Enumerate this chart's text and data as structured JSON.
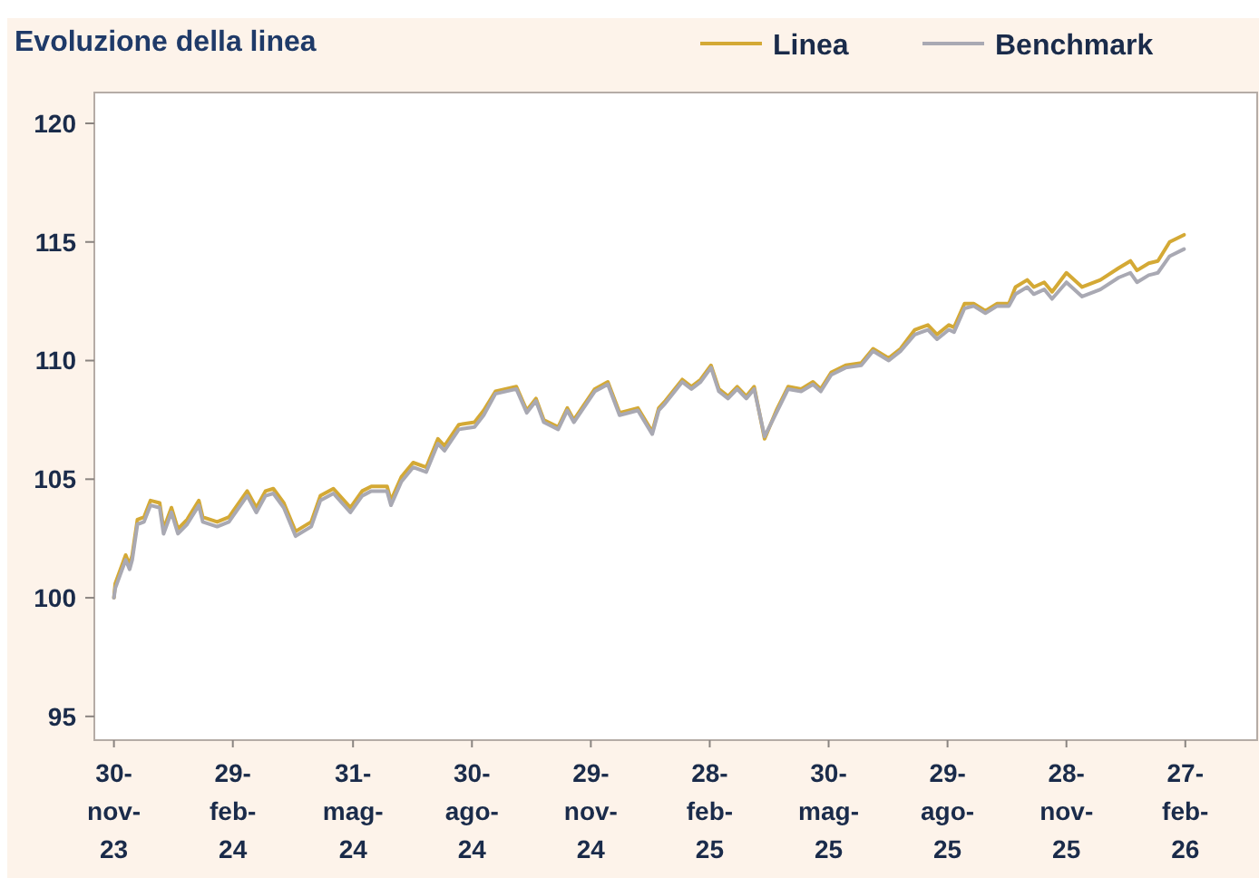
{
  "chart_data": {
    "type": "line",
    "title": "Evoluzione della linea",
    "x": [
      "2023-11-30",
      "2023-12-01",
      "2023-12-05",
      "2023-12-09",
      "2023-12-12",
      "2023-12-14",
      "2023-12-18",
      "2023-12-23",
      "2023-12-28",
      "2024-01-04",
      "2024-01-07",
      "2024-01-13",
      "2024-01-18",
      "2024-01-25",
      "2024-02-03",
      "2024-02-06",
      "2024-02-17",
      "2024-02-26",
      "2024-03-11",
      "2024-03-18",
      "2024-03-25",
      "2024-03-31",
      "2024-04-08",
      "2024-04-17",
      "2024-04-29",
      "2024-05-06",
      "2024-05-16",
      "2024-05-29",
      "2024-06-07",
      "2024-06-14",
      "2024-06-26",
      "2024-06-29",
      "2024-07-07",
      "2024-07-16",
      "2024-07-26",
      "2024-08-04",
      "2024-08-09",
      "2024-08-20",
      "2024-09-01",
      "2024-09-08",
      "2024-09-17",
      "2024-10-03",
      "2024-10-11",
      "2024-10-18",
      "2024-10-24",
      "2024-11-04",
      "2024-11-11",
      "2024-11-16",
      "2024-12-02",
      "2024-12-12",
      "2024-12-21",
      "2025-01-04",
      "2025-01-15",
      "2025-01-20",
      "2025-01-25",
      "2025-02-07",
      "2025-02-14",
      "2025-02-21",
      "2025-03-01",
      "2025-03-07",
      "2025-03-14",
      "2025-03-21",
      "2025-03-28",
      "2025-04-03",
      "2025-04-11",
      "2025-04-20",
      "2025-04-29",
      "2025-05-09",
      "2025-05-18",
      "2025-05-24",
      "2025-06-01",
      "2025-06-12",
      "2025-06-24",
      "2025-07-03",
      "2025-07-15",
      "2025-07-24",
      "2025-08-04",
      "2025-08-14",
      "2025-08-21",
      "2025-08-30",
      "2025-09-03",
      "2025-09-11",
      "2025-09-18",
      "2025-09-27",
      "2025-10-06",
      "2025-10-15",
      "2025-10-20",
      "2025-10-29",
      "2025-11-03",
      "2025-11-11",
      "2025-11-17",
      "2025-11-28",
      "2025-12-10",
      "2025-12-24",
      "2026-01-07",
      "2026-01-16",
      "2026-01-21",
      "2026-01-30",
      "2026-02-06",
      "2026-02-15",
      "2026-02-26"
    ],
    "series": [
      {
        "name": "Linea",
        "color": "#d4a935",
        "values": [
          100,
          100.6,
          101.2,
          101.8,
          101.4,
          101.8,
          103.3,
          103.4,
          104.1,
          104.0,
          102.9,
          103.8,
          102.9,
          103.3,
          104.1,
          103.4,
          103.2,
          103.4,
          104.5,
          103.8,
          104.5,
          104.6,
          104.0,
          102.8,
          103.2,
          104.3,
          104.6,
          103.8,
          104.5,
          104.7,
          104.7,
          104.1,
          105.1,
          105.7,
          105.5,
          106.7,
          106.4,
          107.3,
          107.4,
          107.9,
          108.7,
          108.9,
          107.9,
          108.4,
          107.5,
          107.2,
          108.0,
          107.5,
          108.8,
          109.1,
          107.8,
          108.0,
          107.0,
          108.0,
          108.3,
          109.2,
          108.9,
          109.2,
          109.8,
          108.8,
          108.5,
          108.9,
          108.5,
          108.9,
          106.7,
          107.9,
          108.9,
          108.8,
          109.1,
          108.8,
          109.5,
          109.8,
          109.9,
          110.5,
          110.1,
          110.5,
          111.3,
          111.5,
          111.1,
          111.5,
          111.4,
          112.4,
          112.4,
          112.1,
          112.4,
          112.4,
          113.1,
          113.4,
          113.1,
          113.3,
          112.9,
          113.7,
          113.1,
          113.4,
          113.9,
          114.2,
          113.8,
          114.1,
          114.2,
          115.0,
          115.3
        ]
      },
      {
        "name": "Benchmark",
        "color": "#a9a9b3",
        "values": [
          100,
          100.4,
          101.0,
          101.6,
          101.2,
          101.6,
          103.1,
          103.2,
          103.9,
          103.8,
          102.7,
          103.6,
          102.7,
          103.1,
          103.9,
          103.2,
          103.0,
          103.2,
          104.3,
          103.6,
          104.3,
          104.4,
          103.8,
          102.6,
          103.0,
          104.1,
          104.4,
          103.6,
          104.3,
          104.5,
          104.5,
          103.9,
          104.9,
          105.5,
          105.3,
          106.5,
          106.2,
          107.1,
          107.2,
          107.7,
          108.6,
          108.8,
          107.8,
          108.3,
          107.4,
          107.1,
          107.9,
          107.4,
          108.7,
          109.0,
          107.7,
          107.9,
          106.9,
          107.9,
          108.2,
          109.1,
          108.8,
          109.1,
          109.7,
          108.7,
          108.4,
          108.8,
          108.4,
          108.8,
          106.8,
          107.8,
          108.8,
          108.7,
          109.0,
          108.7,
          109.4,
          109.7,
          109.8,
          110.4,
          110.0,
          110.4,
          111.1,
          111.3,
          110.9,
          111.3,
          111.2,
          112.2,
          112.3,
          112.0,
          112.3,
          112.3,
          112.8,
          113.1,
          112.8,
          113.0,
          112.6,
          113.3,
          112.7,
          113.0,
          113.5,
          113.7,
          113.3,
          113.6,
          113.7,
          114.4,
          114.7
        ]
      }
    ],
    "xlim": [
      "2023-11-15",
      "2026-04-23"
    ],
    "xticks": [
      {
        "value": "2023-11-30",
        "label": "30-nov-23"
      },
      {
        "value": "2024-02-29",
        "label": "29-feb-24"
      },
      {
        "value": "2024-05-31",
        "label": "31-mag-24"
      },
      {
        "value": "2024-08-30",
        "label": "30-ago-24"
      },
      {
        "value": "2024-11-29",
        "label": "29-nov-24"
      },
      {
        "value": "2025-02-28",
        "label": "28-feb-25"
      },
      {
        "value": "2025-05-30",
        "label": "30-mag-25"
      },
      {
        "value": "2025-08-29",
        "label": "29-ago-25"
      },
      {
        "value": "2025-11-28",
        "label": "28-nov-25"
      },
      {
        "value": "2026-02-27",
        "label": "27-feb-26"
      }
    ],
    "ylim": [
      94,
      121.3
    ],
    "yticks": [
      95,
      100,
      105,
      110,
      115,
      120
    ],
    "grid": false,
    "legend": "top right",
    "marker": "none",
    "line_style": "solid"
  }
}
